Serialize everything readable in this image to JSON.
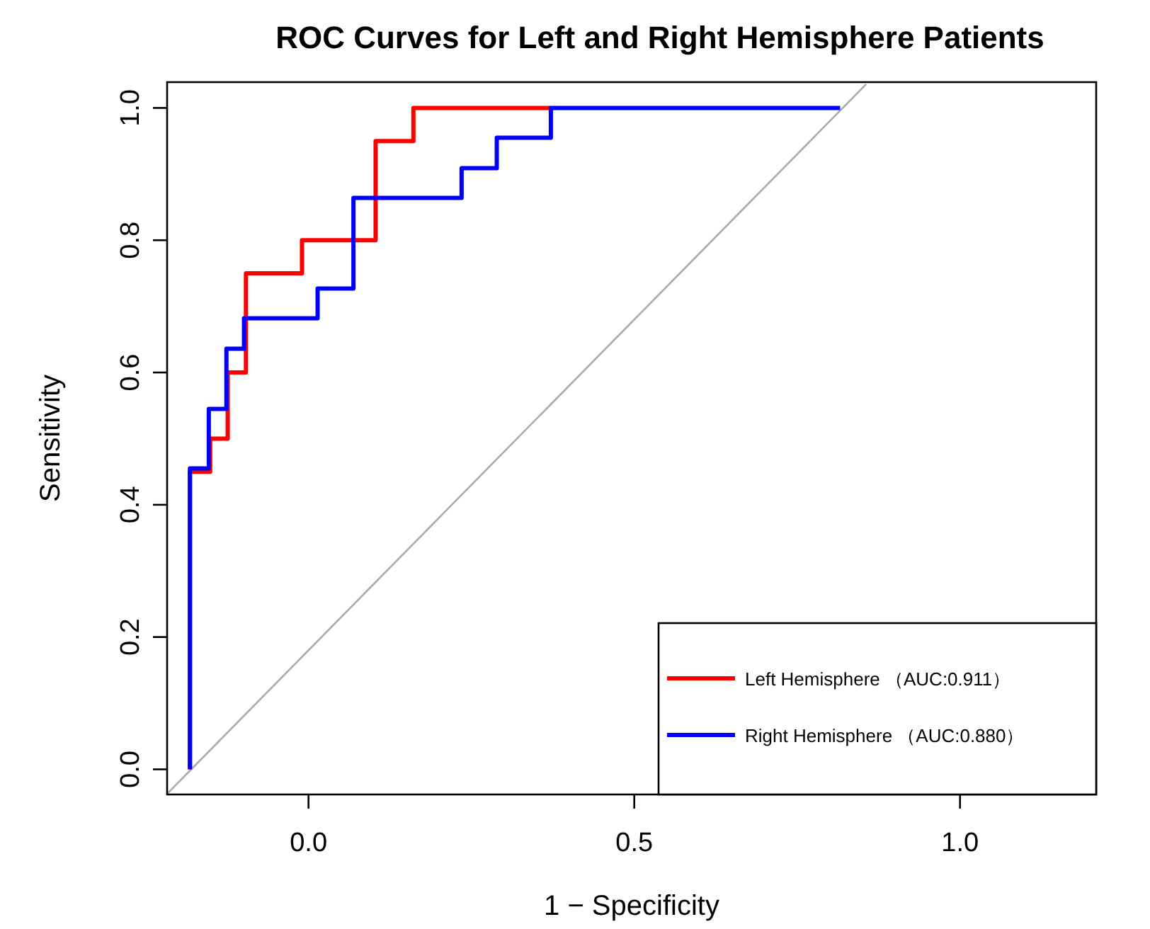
{
  "chart_data": {
    "type": "step",
    "title": "ROC Curves for Left and Right Hemisphere Patients",
    "xlabel": "1 − Specificity",
    "ylabel": "Sensitivity",
    "xlim": [
      -0.217,
      1.209
    ],
    "ylim": [
      -0.038,
      1.039
    ],
    "xticks": [
      {
        "value": 0,
        "label": "0.0"
      },
      0.5,
      {
        "value": 1,
        "label": "1.0"
      }
    ],
    "yticks": [
      {
        "value": 0,
        "label": "0.0"
      },
      0.2,
      0.4,
      0.6,
      0.8,
      {
        "value": 1,
        "label": "1.0"
      }
    ],
    "grid": false,
    "legend": "bottom right",
    "series": [
      {
        "type": "line",
        "color": "#aaaaaa",
        "x": [
          -0.217,
          0.856
        ],
        "values": [
          -0.037,
          1.036
        ]
      },
      {
        "name": "Left Hemisphere （AUC:0.911）",
        "color": "#ff0000",
        "x": [
          -0.182,
          -0.182,
          -0.151,
          -0.124,
          -0.096,
          -0.01,
          0.103,
          0.161,
          0.372
        ],
        "values": [
          0,
          0.45,
          0.5,
          0.6,
          0.75,
          0.8,
          0.95,
          1.0,
          1.0
        ]
      },
      {
        "name": "Right Hemisphere （AUC:0.880）",
        "color": "#0000ff",
        "x": [
          -0.182,
          -0.182,
          -0.153,
          -0.126,
          -0.099,
          0.014,
          0.069,
          0.235,
          0.289,
          0.372,
          0.816
        ],
        "values": [
          0,
          0.455,
          0.545,
          0.636,
          0.682,
          0.727,
          0.864,
          0.909,
          0.955,
          1.0,
          1.0
        ]
      }
    ]
  }
}
